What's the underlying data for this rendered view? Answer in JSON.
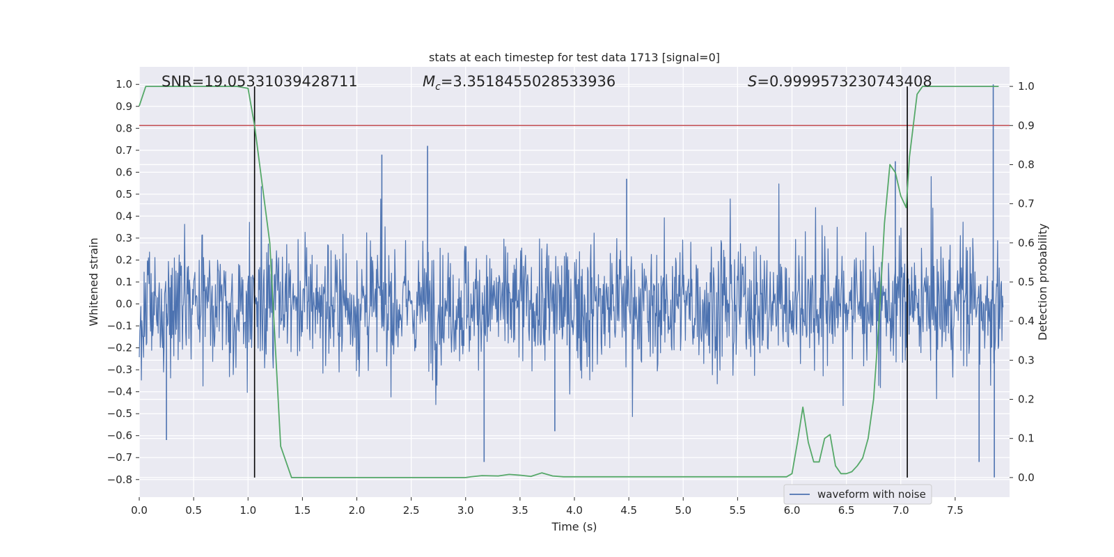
{
  "chart_data": {
    "type": "line",
    "title": "stats at each timestep for test data 1713 [signal=0]",
    "xlabel": "Time (s)",
    "ylabel_left": "Whitened strain",
    "ylabel_right": "Detection probability",
    "xlim": [
      0,
      8
    ],
    "ylim_left": [
      -0.88,
      1.08
    ],
    "ylim_right": [
      -0.05,
      1.05
    ],
    "x_ticks": [
      0.0,
      0.5,
      1.0,
      1.5,
      2.0,
      2.5,
      3.0,
      3.5,
      4.0,
      4.5,
      5.0,
      5.5,
      6.0,
      6.5,
      7.0,
      7.5
    ],
    "x_tick_labels": [
      "0.0",
      "0.5",
      "1.0",
      "1.5",
      "2.0",
      "2.5",
      "3.0",
      "3.5",
      "4.0",
      "4.5",
      "5.0",
      "5.5",
      "6.0",
      "6.5",
      "7.0",
      "7.5"
    ],
    "y_left_ticks": [
      1.0,
      0.9,
      0.8,
      0.7,
      0.6,
      0.5,
      0.4,
      0.3,
      0.2,
      0.1,
      0.0,
      -0.1,
      -0.2,
      -0.3,
      -0.4,
      -0.5,
      -0.6,
      -0.7,
      -0.8
    ],
    "y_left_tick_labels": [
      "1.0",
      "0.9",
      "0.8",
      "0.7",
      "0.6",
      "0.5",
      "0.4",
      "0.3",
      "0.2",
      "0.1",
      "0.0",
      "−0.1",
      "−0.2",
      "−0.3",
      "−0.4",
      "−0.5",
      "−0.6",
      "−0.7",
      "−0.8"
    ],
    "y_right_ticks": [
      1.0,
      0.9,
      0.8,
      0.7,
      0.6,
      0.5,
      0.4,
      0.3,
      0.2,
      0.1,
      0.0
    ],
    "y_right_tick_labels": [
      "1.0",
      "0.9",
      "0.8",
      "0.7",
      "0.6",
      "0.5",
      "0.4",
      "0.3",
      "0.2",
      "0.1",
      "0.0"
    ],
    "annotations": {
      "snr": "SNR=19.05331039428711",
      "mc_symbol": "M",
      "mc_sub": "c",
      "mc_value": "=3.3518455028533936",
      "s_symbol": "S",
      "s_value": "=0.9999573230743408"
    },
    "legend": {
      "label": "waveform with noise",
      "position": "lower-right"
    },
    "threshold_right": 0.9,
    "vlines_x": [
      1.06,
      7.06
    ],
    "series": [
      {
        "name": "waveform with noise",
        "axis": "left",
        "color": "#4c72b0",
        "style": "noise",
        "seed": 1713,
        "samples": 1600,
        "sigma": 0.12,
        "spikes": [
          {
            "x": 2.65,
            "y": 0.72
          },
          {
            "x": 2.23,
            "y": 0.68
          },
          {
            "x": 3.17,
            "y": -0.72
          },
          {
            "x": 7.85,
            "y": 1.0
          },
          {
            "x": 7.86,
            "y": -0.79
          },
          {
            "x": 0.25,
            "y": -0.62
          },
          {
            "x": 7.72,
            "y": -0.72
          },
          {
            "x": 6.95,
            "y": 0.65
          },
          {
            "x": 3.82,
            "y": -0.58
          },
          {
            "x": 4.48,
            "y": 0.57
          }
        ]
      },
      {
        "name": "detection probability",
        "axis": "right",
        "color": "#55a868",
        "x": [
          0.0,
          0.06,
          0.13,
          0.2,
          0.3,
          0.5,
          0.7,
          0.9,
          1.0,
          1.06,
          1.2,
          1.3,
          1.4,
          1.5,
          2.0,
          2.5,
          3.0,
          3.05,
          3.15,
          3.3,
          3.4,
          3.5,
          3.6,
          3.7,
          3.8,
          3.9,
          4.0,
          4.5,
          5.0,
          5.5,
          5.95,
          6.0,
          6.05,
          6.1,
          6.15,
          6.2,
          6.25,
          6.3,
          6.35,
          6.4,
          6.45,
          6.5,
          6.55,
          6.6,
          6.65,
          6.7,
          6.75,
          6.8,
          6.85,
          6.9,
          6.95,
          7.0,
          7.05,
          7.08,
          7.15,
          7.2,
          7.3,
          7.5,
          7.9
        ],
        "y": [
          0.95,
          1.0,
          1.0,
          1.0,
          1.0,
          1.0,
          1.0,
          1.0,
          0.995,
          0.9,
          0.6,
          0.08,
          0.0,
          0.0,
          0.0,
          0.0,
          0.0,
          0.002,
          0.005,
          0.004,
          0.008,
          0.006,
          0.003,
          0.012,
          0.004,
          0.002,
          0.002,
          0.002,
          0.002,
          0.002,
          0.002,
          0.01,
          0.09,
          0.18,
          0.09,
          0.04,
          0.04,
          0.1,
          0.11,
          0.03,
          0.01,
          0.01,
          0.015,
          0.03,
          0.05,
          0.1,
          0.2,
          0.4,
          0.65,
          0.8,
          0.78,
          0.72,
          0.69,
          0.82,
          0.98,
          1.0,
          1.0,
          1.0,
          1.0
        ]
      }
    ]
  }
}
